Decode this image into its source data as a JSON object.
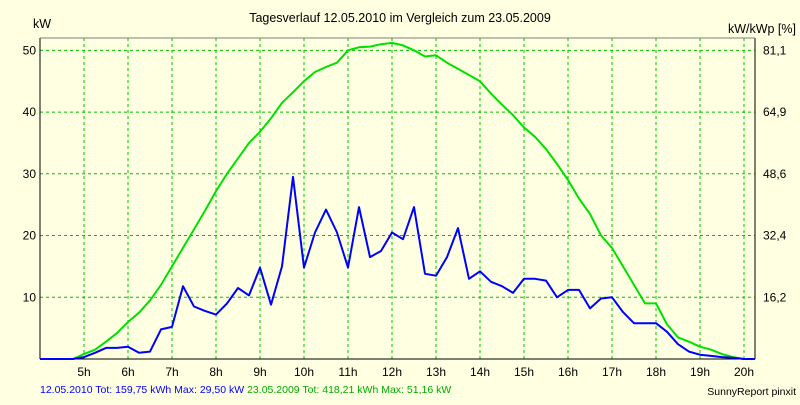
{
  "chart_data": {
    "type": "line",
    "title": "Tagesverlauf 12.05.2010 im Vergleich zum 23.05.2009",
    "left_unit": "kW",
    "right_unit": "kW/kWp [%]",
    "x_tick_labels": [
      "5h",
      "6h",
      "7h",
      "8h",
      "9h",
      "10h",
      "11h",
      "12h",
      "13h",
      "14h",
      "15h",
      "16h",
      "17h",
      "18h",
      "19h",
      "20h"
    ],
    "x_range": [
      4.0,
      20.25
    ],
    "y_left_range": [
      0,
      52
    ],
    "y_left_ticks": [
      10,
      20,
      30,
      40,
      50
    ],
    "y_right_ticks": [
      "16,2",
      "32,4",
      "48,6",
      "64,9",
      "81,1"
    ],
    "y_right_tick_positions_kw": [
      10,
      20,
      30,
      40,
      50
    ],
    "grid": true,
    "grid_color": "#00c000",
    "series": [
      {
        "name": "12.05.2010",
        "color": "#0000ff",
        "x": [
          4.0,
          4.25,
          4.5,
          4.75,
          5.0,
          5.25,
          5.5,
          5.75,
          6.0,
          6.25,
          6.5,
          6.75,
          7.0,
          7.25,
          7.5,
          7.75,
          8.0,
          8.25,
          8.5,
          8.75,
          9.0,
          9.25,
          9.5,
          9.75,
          10.0,
          10.25,
          10.5,
          10.75,
          11.0,
          11.25,
          11.5,
          11.75,
          12.0,
          12.25,
          12.5,
          12.75,
          13.0,
          13.25,
          13.5,
          13.75,
          14.0,
          14.25,
          14.5,
          14.75,
          15.0,
          15.25,
          15.5,
          15.75,
          16.0,
          16.25,
          16.5,
          16.75,
          17.0,
          17.25,
          17.5,
          17.75,
          18.0,
          18.25,
          18.5,
          18.75,
          19.0,
          19.25,
          19.5,
          19.75,
          20.0,
          20.25
        ],
        "values": [
          0,
          0,
          0,
          0,
          0.3,
          1.0,
          1.8,
          1.8,
          2.0,
          1.0,
          1.2,
          4.8,
          5.2,
          11.8,
          8.5,
          7.8,
          7.2,
          9.0,
          11.5,
          10.3,
          14.8,
          8.8,
          15.0,
          29.5,
          14.8,
          20.5,
          24.2,
          20.5,
          14.8,
          24.6,
          16.5,
          17.5,
          20.5,
          19.4,
          24.6,
          13.8,
          13.5,
          16.5,
          21.2,
          13.0,
          14.2,
          12.5,
          11.8,
          10.7,
          13.0,
          13.0,
          12.7,
          10.0,
          11.2,
          11.2,
          8.2,
          9.8,
          10.0,
          7.6,
          5.8,
          5.8,
          5.8,
          4.4,
          2.4,
          1.2,
          0.7,
          0.5,
          0.3,
          0.2,
          0,
          0
        ]
      },
      {
        "name": "23.05.2009",
        "color": "#00e000",
        "x": [
          4.0,
          4.25,
          4.5,
          4.75,
          5.0,
          5.25,
          5.5,
          5.75,
          6.0,
          6.25,
          6.5,
          6.75,
          7.0,
          7.25,
          7.5,
          7.75,
          8.0,
          8.25,
          8.5,
          8.75,
          9.0,
          9.25,
          9.5,
          9.75,
          10.0,
          10.25,
          10.5,
          10.75,
          11.0,
          11.25,
          11.5,
          11.75,
          12.0,
          12.25,
          12.5,
          12.75,
          13.0,
          13.25,
          13.5,
          13.75,
          14.0,
          14.25,
          14.5,
          14.75,
          15.0,
          15.25,
          15.5,
          15.75,
          16.0,
          16.25,
          16.5,
          16.75,
          17.0,
          17.25,
          17.5,
          17.75,
          18.0,
          18.25,
          18.5,
          18.75,
          19.0,
          19.25,
          19.5,
          19.75,
          20.0,
          20.25
        ],
        "values": [
          0,
          0,
          0,
          0,
          0.8,
          1.5,
          2.8,
          4.2,
          6.0,
          7.5,
          9.5,
          12.0,
          15.0,
          18.0,
          21.0,
          24.0,
          27.2,
          30.0,
          32.5,
          35.0,
          36.8,
          39.0,
          41.5,
          43.2,
          45.0,
          46.5,
          47.3,
          48.0,
          50.0,
          50.5,
          50.6,
          51.0,
          51.2,
          50.8,
          50.0,
          49.0,
          49.2,
          48.0,
          47.0,
          46.0,
          45.0,
          43.0,
          41.2,
          39.5,
          37.5,
          36.0,
          34.0,
          31.6,
          29.0,
          26.0,
          23.5,
          20.0,
          18.0,
          15.0,
          12.0,
          9.0,
          9.0,
          5.6,
          3.5,
          2.8,
          2.0,
          1.5,
          0.8,
          0.3,
          0,
          0
        ]
      }
    ]
  },
  "footer": {
    "blue_date": "12.05.2010",
    "blue_tot_label": "Tot:",
    "blue_tot_value": "159,75 kWh",
    "blue_max_label": "Max:",
    "blue_max_value": "29,50 kW",
    "green_date": "23.05.2009",
    "green_tot_label": "Tot:",
    "green_tot_value": "418,21 kWh",
    "green_max_label": "Max:",
    "green_max_value": "51,16 kW",
    "credit": "SunnyReport pinxit"
  }
}
